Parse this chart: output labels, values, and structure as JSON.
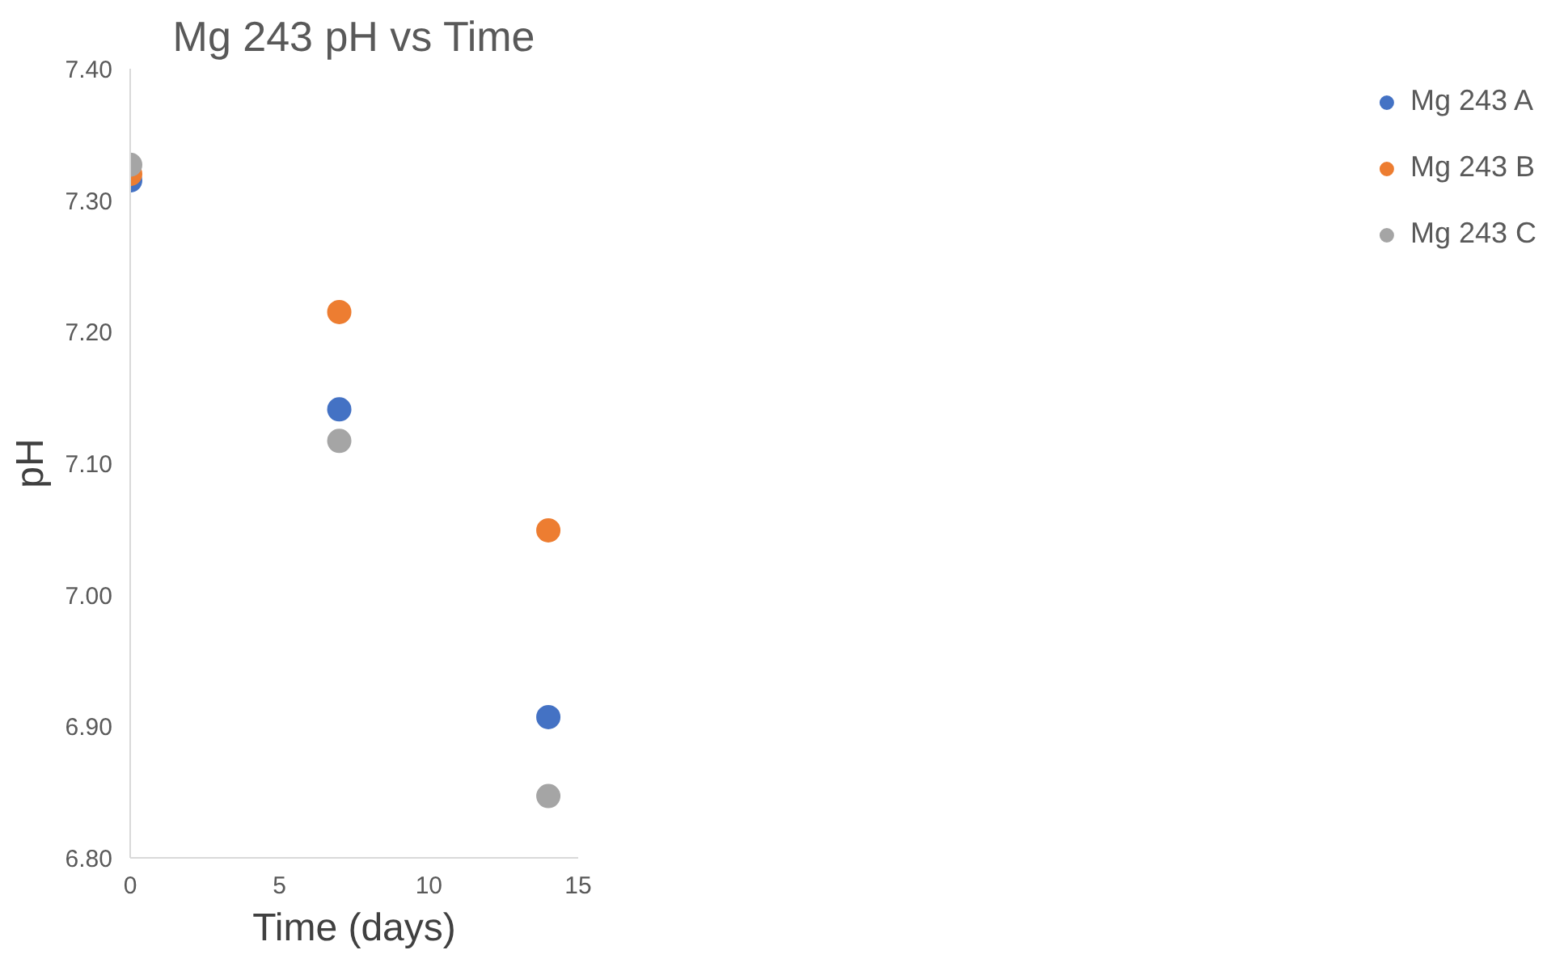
{
  "chart_data": {
    "type": "scatter",
    "title": "Mg 243 pH vs Time",
    "xlabel": "Time (days)",
    "ylabel": "pH",
    "x": [
      0,
      7,
      14
    ],
    "series": [
      {
        "name": "Mg 243 A",
        "color": "#4472c4",
        "values": [
          7.315,
          7.141,
          6.907
        ]
      },
      {
        "name": "Mg 243 B",
        "color": "#ed7d31",
        "values": [
          7.32,
          7.215,
          7.049
        ]
      },
      {
        "name": "Mg 243 C",
        "color": "#a5a5a5",
        "values": [
          7.327,
          7.117,
          6.847
        ]
      }
    ],
    "xlim": [
      0,
      15
    ],
    "xticks": [
      0,
      5,
      10,
      15
    ],
    "ylim": [
      6.8,
      7.4
    ],
    "yticks": [
      {
        "value": 6.8,
        "label": "6.80"
      },
      {
        "value": 6.9,
        "label": "6.90"
      },
      {
        "value": 7.0,
        "label": "7.00"
      },
      {
        "value": 7.1,
        "label": "7.10"
      },
      {
        "value": 7.2,
        "label": "7.20"
      },
      {
        "value": 7.3,
        "label": "7.30"
      },
      {
        "value": 7.4,
        "label": "7.40"
      }
    ],
    "grid": false,
    "legend": "right",
    "marker": "circle"
  }
}
